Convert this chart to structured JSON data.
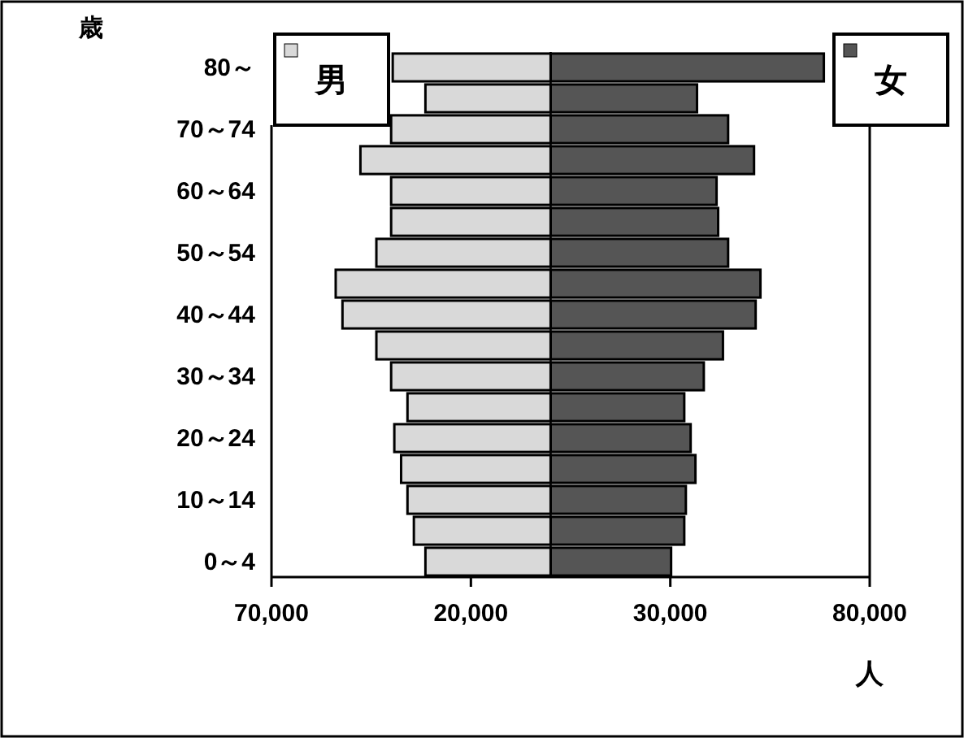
{
  "chart_data": {
    "type": "bar",
    "orientation": "horizontal",
    "stacked": true,
    "ylabel": "歳",
    "xlabel": "人",
    "categories": [
      "80～",
      null,
      "70～74",
      null,
      "60～64",
      null,
      "50～54",
      null,
      "40～44",
      null,
      "30～34",
      null,
      "20～24",
      null,
      "10～14",
      null,
      "0～4"
    ],
    "series": [
      {
        "name": "男",
        "color": "#d9d9d9",
        "values": [
          -39600,
          -31400,
          -40000,
          -47700,
          -40000,
          -40000,
          -43700,
          -53900,
          -52200,
          -43700,
          -40000,
          -35900,
          -39200,
          -37500,
          -35900,
          -34300,
          -31400
        ]
      },
      {
        "name": "女",
        "color": "#555555",
        "values": [
          68500,
          36700,
          44500,
          51000,
          41600,
          42000,
          44500,
          52600,
          51400,
          43200,
          38400,
          33500,
          35100,
          36300,
          33900,
          33500,
          30200
        ]
      }
    ],
    "xlim": [
      -70000,
      80000
    ],
    "xticks": [
      {
        "value": -70000,
        "label": "70,000"
      },
      {
        "value": -20000,
        "label": "20,000"
      },
      {
        "value": 30000,
        "label": "30,000"
      },
      {
        "value": 80000,
        "label": "80,000"
      }
    ],
    "legend": "top",
    "grid": false
  }
}
